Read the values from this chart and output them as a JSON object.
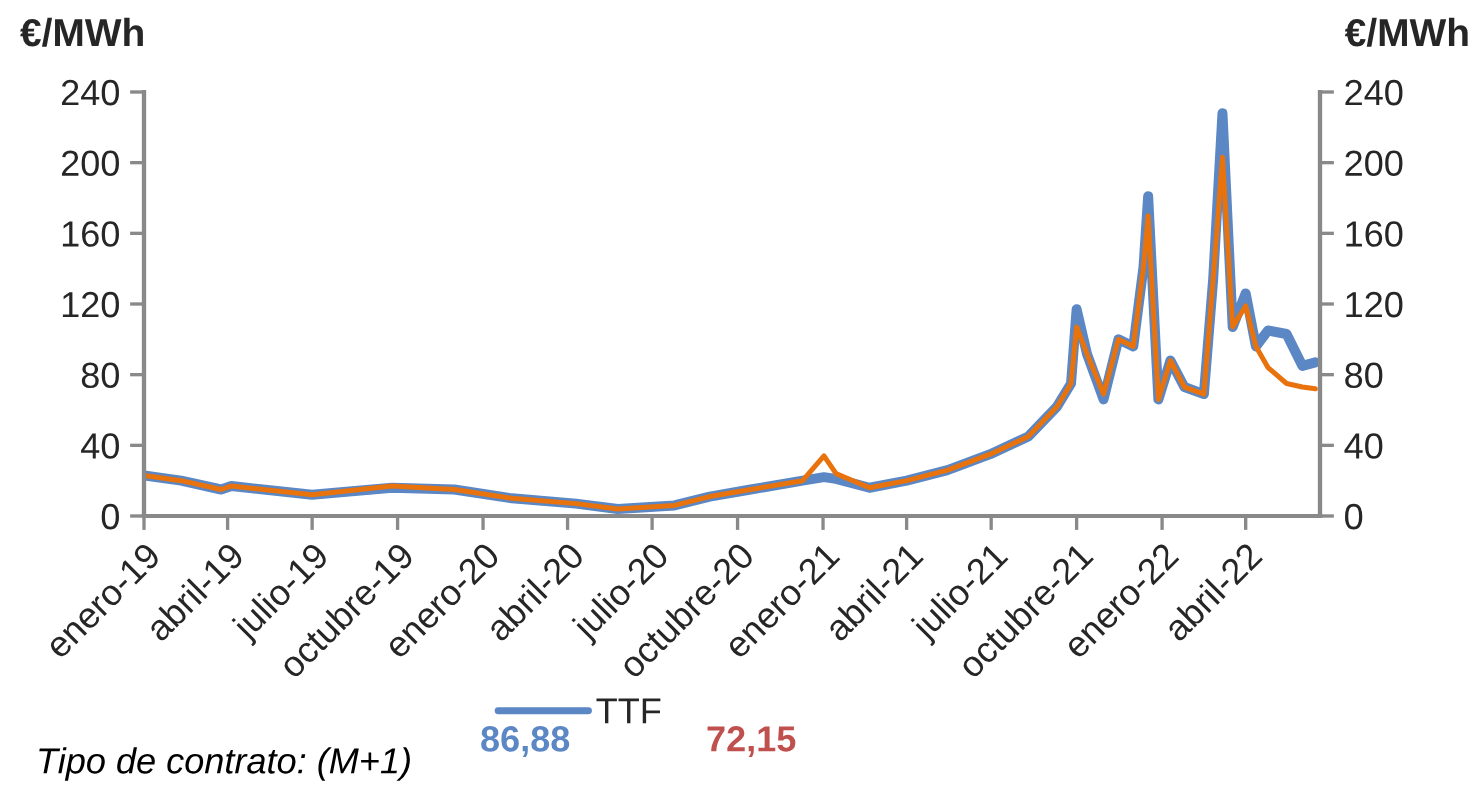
{
  "chart_data": {
    "type": "line",
    "ylabel": "€/MWh",
    "y2label": "€/MWh",
    "x": [
      "2019-01-01",
      "2019-02-10",
      "2019-03-25",
      "2019-04-05",
      "2019-07-01",
      "2019-09-25",
      "2019-12-01",
      "2020-02-01",
      "2020-04-10",
      "2020-05-25",
      "2020-07-25",
      "2020-09-01",
      "2020-10-15",
      "2020-12-10",
      "2021-01-02",
      "2021-01-15",
      "2021-02-20",
      "2021-04-01",
      "2021-05-15",
      "2021-06-30",
      "2021-08-10",
      "2021-09-10",
      "2021-09-25",
      "2021-10-01",
      "2021-10-12",
      "2021-10-30",
      "2021-11-15",
      "2021-12-01",
      "2021-12-12",
      "2021-12-17",
      "2021-12-28",
      "2022-01-10",
      "2022-01-25",
      "2022-02-15",
      "2022-02-25",
      "2022-03-07",
      "2022-03-18",
      "2022-04-01",
      "2022-04-12",
      "2022-04-25",
      "2022-05-15",
      "2022-06-01",
      "2022-06-15"
    ],
    "series": [
      {
        "name": "TTF",
        "color": "#5b87c5",
        "values": [
          23,
          20,
          15,
          17,
          12,
          16,
          15,
          10,
          7,
          4,
          6,
          11,
          15,
          20,
          22,
          21,
          16,
          20,
          26,
          35,
          45,
          62,
          75,
          117,
          92,
          66,
          100,
          96,
          141,
          181,
          66,
          88,
          73,
          69,
          134,
          228,
          107,
          126,
          96,
          105,
          103,
          85,
          87
        ]
      },
      {
        "color": "#e8720c",
        "values": [
          23,
          20,
          15,
          17,
          12,
          17,
          15,
          10,
          7,
          4,
          6,
          11,
          15,
          20,
          34,
          24,
          16,
          20,
          26,
          35,
          45,
          62,
          75,
          107,
          92,
          69,
          100,
          96,
          141,
          170,
          66,
          88,
          73,
          69,
          134,
          203,
          107,
          119,
          96,
          84,
          75,
          73,
          72
        ]
      }
    ],
    "xlim": [
      "2019-01-01",
      "2022-06-20"
    ],
    "xticks": [
      {
        "value": "2019-01-01",
        "label": "enero-19"
      },
      {
        "value": "2019-04-01",
        "label": "abril-19"
      },
      {
        "value": "2019-07-01",
        "label": "julio-19"
      },
      {
        "value": "2019-10-01",
        "label": "octubre-19"
      },
      {
        "value": "2020-01-01",
        "label": "enero-20"
      },
      {
        "value": "2020-04-01",
        "label": "abril-20"
      },
      {
        "value": "2020-07-01",
        "label": "julio-20"
      },
      {
        "value": "2020-10-01",
        "label": "octubre-20"
      },
      {
        "value": "2021-01-01",
        "label": "enero-21"
      },
      {
        "value": "2021-04-01",
        "label": "abril-21"
      },
      {
        "value": "2021-07-01",
        "label": "julio-21"
      },
      {
        "value": "2021-10-01",
        "label": "octubre-21"
      },
      {
        "value": "2022-01-01",
        "label": "enero-22"
      },
      {
        "value": "2022-04-01",
        "label": "abril-22"
      }
    ],
    "ylim": [
      0,
      240
    ],
    "yticks": [
      0,
      40,
      80,
      120,
      160,
      200,
      240
    ],
    "y2lim": [
      0,
      240
    ],
    "y2ticks": [
      0,
      40,
      80,
      120,
      160,
      200,
      240
    ],
    "legend": "bottom",
    "grid": false,
    "annotations": [
      "86,88",
      "72,15",
      "Tipo de contrato: (M+1)"
    ]
  }
}
